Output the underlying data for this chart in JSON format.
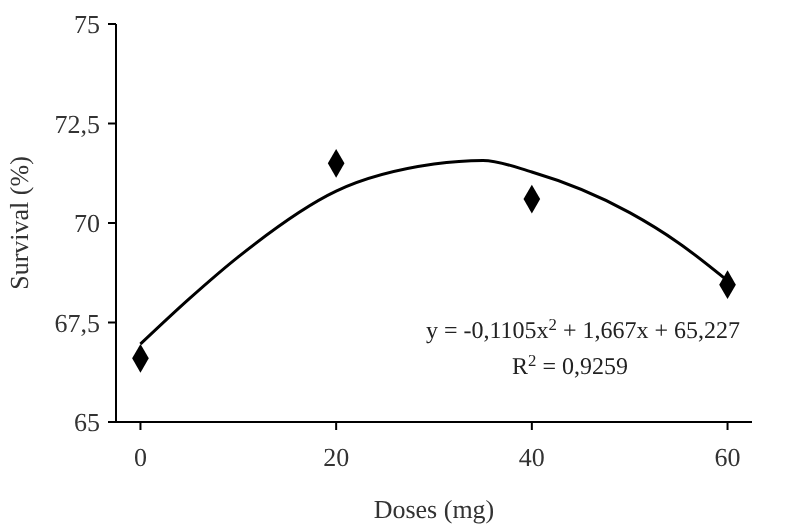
{
  "chart_data": {
    "type": "scatter",
    "xlabel": "Doses (mg)",
    "ylabel": "Survival (%)",
    "xlim": [
      -2.5,
      62.5
    ],
    "xticks": [
      0,
      20,
      40,
      60
    ],
    "ylim": [
      65,
      75
    ],
    "yticks": [
      65,
      {
        "value": 67.5,
        "label": "67,5"
      },
      70,
      {
        "value": 72.5,
        "label": "72,5"
      },
      75
    ],
    "grid": false,
    "series": [
      {
        "color": "#000000",
        "marker": "diamond",
        "x": [
          0,
          20,
          40,
          60
        ],
        "values": [
          66.6,
          71.5,
          70.6,
          68.45
        ]
      },
      {
        "type": "line",
        "color": "#000000",
        "marker": "none",
        "line_style": "solid",
        "x": [
          0,
          5,
          10,
          20,
          30,
          35,
          40,
          50,
          55,
          60
        ],
        "values": [
          66.96,
          68.1,
          69.15,
          70.8,
          71.48,
          71.57,
          71.28,
          70.26,
          69.5,
          68.55
        ]
      }
    ],
    "annotations": [
      "y = -0,1105x$^{2}$ + 1,667x + 65,227",
      "R$^{2}$ = 0,9259"
    ]
  }
}
